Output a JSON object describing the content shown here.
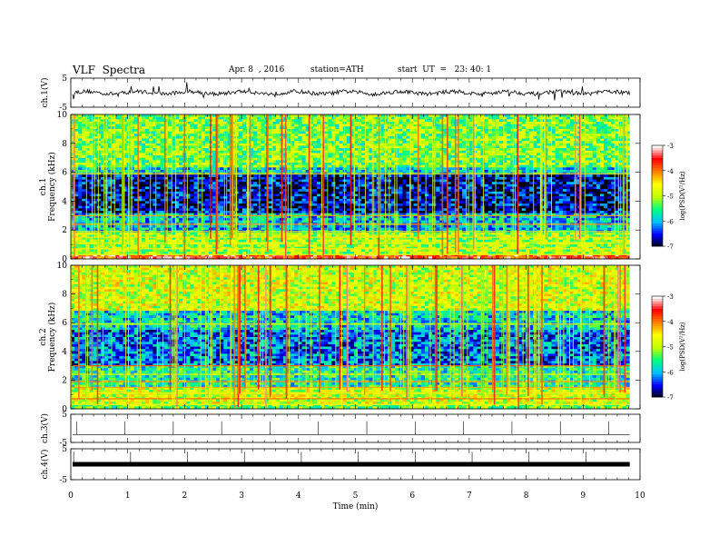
{
  "header": {
    "title": "VLF  Spectra",
    "date": "Apr. 8  , 2016",
    "station": "station=ATH",
    "start": "start  UT  =   23: 40: 1"
  },
  "chart_data": [
    {
      "type": "line",
      "panel": "ch1-waveform",
      "ylabel": "ch.1(V)",
      "ylim": [
        -5,
        5
      ],
      "yticks": [
        "5",
        "-5"
      ],
      "baseline": 0
    },
    {
      "type": "heatmap",
      "panel": "ch1-spectrogram",
      "ylabel_line1": "ch.1",
      "ylabel_line2": "Frequency  (kHz)",
      "ylim": [
        0,
        10
      ],
      "yticks": [
        "0",
        "2",
        "4",
        "6",
        "8",
        "10"
      ],
      "colorbar": {
        "label": "log(PSD(V²/Hz)",
        "range": [
          -7,
          -3
        ],
        "ticks": [
          "-3",
          "-4",
          "-5",
          "-6",
          "-7"
        ]
      },
      "bands_khz": [
        {
          "from": 0,
          "to": 0.3,
          "level": -3.6
        },
        {
          "from": 0.3,
          "to": 1.8,
          "level": -5.0
        },
        {
          "from": 1.8,
          "to": 3.2,
          "level": -5.9
        },
        {
          "from": 3.2,
          "to": 5.8,
          "level": -6.6
        },
        {
          "from": 5.8,
          "to": 6.3,
          "level": -5.8
        },
        {
          "from": 6.3,
          "to": 10,
          "level": -5.2
        }
      ]
    },
    {
      "type": "heatmap",
      "panel": "ch2-spectrogram",
      "ylabel_line1": "ch.2",
      "ylabel_line2": "Frequency  (kHz)",
      "ylim": [
        0,
        10
      ],
      "yticks": [
        "0",
        "2",
        "4",
        "6",
        "8",
        "10"
      ],
      "colorbar": {
        "label": "log(PSD(V²/Hz)",
        "range": [
          -7,
          -3
        ],
        "ticks": [
          "-3",
          "-4",
          "-5",
          "-6",
          "-7"
        ]
      },
      "bands_khz": [
        {
          "from": 0,
          "to": 0.4,
          "level": -5.2
        },
        {
          "from": 0.4,
          "to": 1.5,
          "level": -4.8
        },
        {
          "from": 1.5,
          "to": 3.0,
          "level": -5.6
        },
        {
          "from": 3.0,
          "to": 5.5,
          "level": -6.2
        },
        {
          "from": 5.5,
          "to": 6.8,
          "level": -5.8
        },
        {
          "from": 6.8,
          "to": 10,
          "level": -4.8
        }
      ]
    },
    {
      "type": "line",
      "panel": "ch3-waveform",
      "ylabel": "ch.3(V)",
      "ylim": [
        -5,
        5
      ],
      "yticks": [
        "5",
        "-5"
      ],
      "baseline": 0
    },
    {
      "type": "line",
      "panel": "ch4-waveform",
      "ylabel": "ch.4(V)",
      "ylim": [
        -5,
        5
      ],
      "yticks": [
        "5",
        "-5"
      ],
      "baseline": 0
    }
  ],
  "x_axis": {
    "label": "Time  (min)",
    "xlim": [
      0,
      10
    ],
    "ticks": [
      "0",
      "1",
      "2",
      "3",
      "4",
      "5",
      "6",
      "7",
      "8",
      "9",
      "10"
    ]
  },
  "colors": {
    "scale": [
      "#000000",
      "#0000ff",
      "#00bfff",
      "#00ff80",
      "#c0ff00",
      "#ffff00",
      "#ff8000",
      "#ff0000",
      "#ffffff"
    ]
  }
}
